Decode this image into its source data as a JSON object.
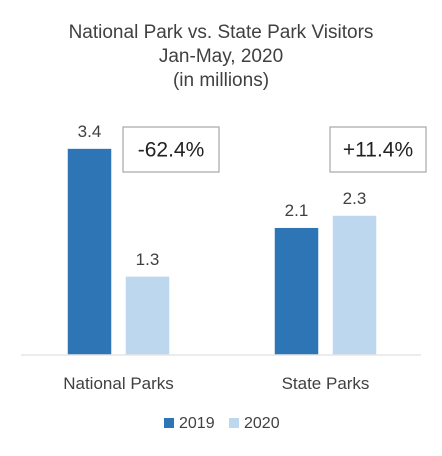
{
  "chart_data": {
    "type": "bar",
    "title": [
      "National Park vs. State Park Visitors",
      "Jan-May, 2020",
      "(in millions)"
    ],
    "categories": [
      "National Parks",
      "State Parks"
    ],
    "series": [
      {
        "name": "2019",
        "values": [
          3.4,
          2.1
        ],
        "color": "#2e75b6"
      },
      {
        "name": "2020",
        "values": [
          1.3,
          2.3
        ],
        "color": "#bdd7ee"
      }
    ],
    "ylim": [
      0,
      3.5
    ],
    "grid": false,
    "annotations": [
      "-62.4%",
      "+11.4%"
    ],
    "legend": "bottom",
    "xlabel": "",
    "ylabel": ""
  }
}
